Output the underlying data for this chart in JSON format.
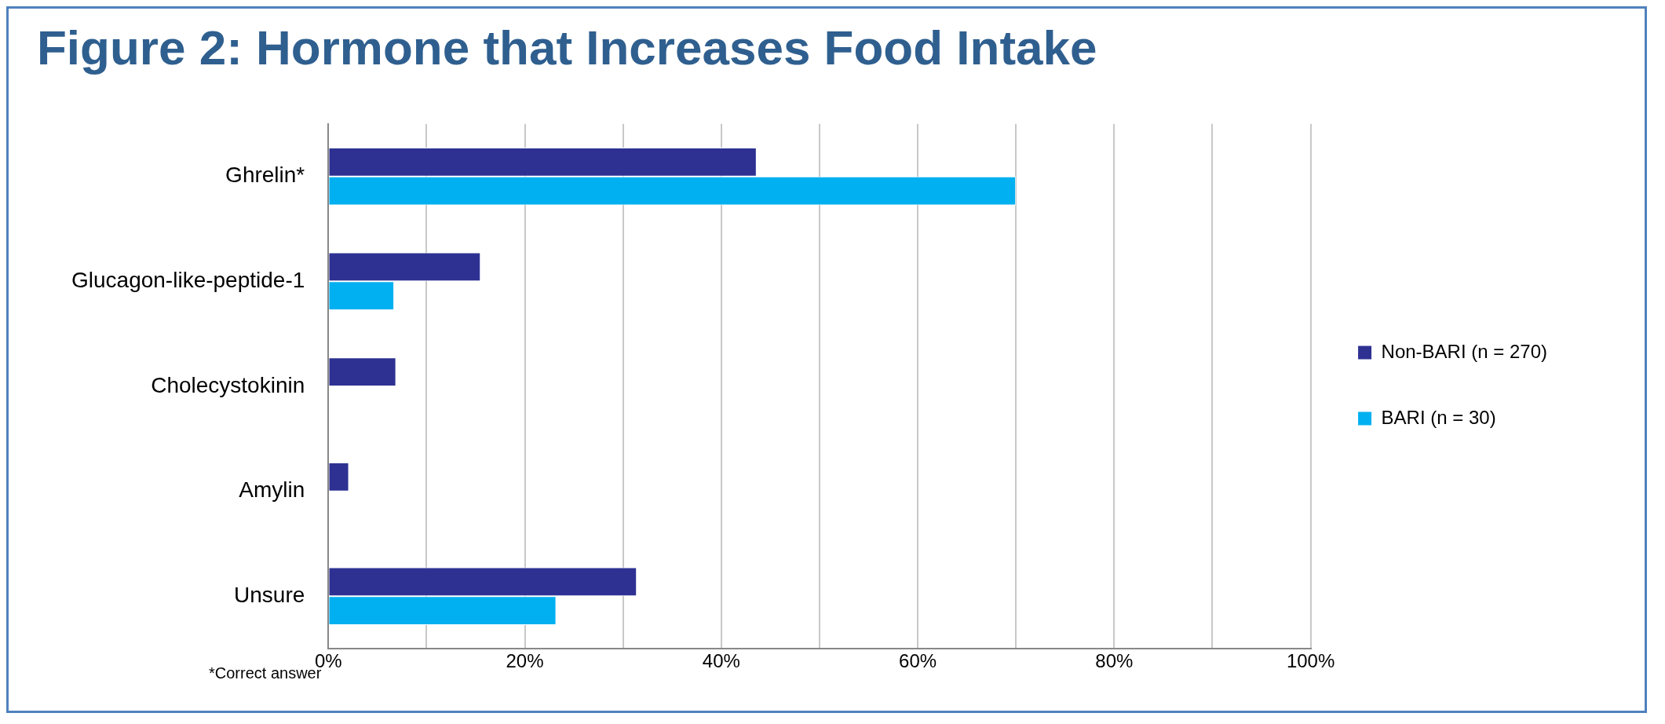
{
  "chart_data": {
    "type": "bar",
    "orientation": "horizontal",
    "title": "Figure 2: Hormone that Increases Food Intake",
    "categories": [
      "Ghrelin*",
      "Glucagon-like-peptide-1",
      "Cholecystokinin",
      "Amylin",
      "Unsure"
    ],
    "series": [
      {
        "name": "Non-BARI (n = 270)",
        "color": "#2e3192",
        "values": [
          43.6,
          15.5,
          6.9,
          2.1,
          31.4
        ]
      },
      {
        "name": "BARI (n = 30)",
        "color": "#00b0f0",
        "values": [
          70.0,
          6.7,
          0,
          0,
          23.2
        ]
      }
    ],
    "xlim": [
      0,
      100
    ],
    "xticks": [
      {
        "value": 0,
        "label": "0%"
      },
      {
        "value": 10,
        "label": null
      },
      {
        "value": 20,
        "label": "20%"
      },
      {
        "value": 30,
        "label": null
      },
      {
        "value": 40,
        "label": "40%"
      },
      {
        "value": 50,
        "label": null
      },
      {
        "value": 60,
        "label": "60%"
      },
      {
        "value": 70,
        "label": null
      },
      {
        "value": 80,
        "label": "80%"
      },
      {
        "value": 90,
        "label": null
      },
      {
        "value": 100,
        "label": "100%"
      }
    ],
    "grid": "x",
    "legend": "right",
    "annotations": [
      "*Correct answer"
    ]
  }
}
